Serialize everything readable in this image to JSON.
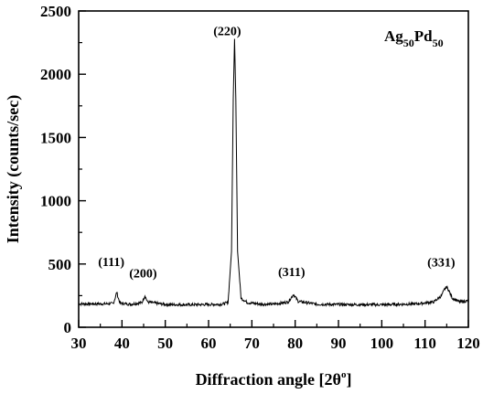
{
  "chart_data": {
    "type": "line",
    "sample_label": "Ag50Pd50",
    "sample_label_parts": {
      "base1": "Ag",
      "sub1": "50",
      "base2": "Pd",
      "sub2": "50"
    },
    "xlabel": "Diffraction angle [2θ°]",
    "xlabel_parts": {
      "main": "Diffraction angle [2θ",
      "sup": "o",
      "end": "]"
    },
    "ylabel": "Intensity (counts/sec)",
    "xlim": [
      30,
      120
    ],
    "ylim": [
      0,
      2500
    ],
    "xticks": [
      "30",
      "40",
      "50",
      "60",
      "70",
      "80",
      "90",
      "100",
      "110",
      "120"
    ],
    "yticks": [
      "0",
      "500",
      "1000",
      "1500",
      "2000",
      "2500"
    ],
    "grid": false,
    "baseline": 180,
    "peaks": [
      {
        "label": "(111)",
        "x": 38.8,
        "y": 280
      },
      {
        "label": "(200)",
        "x": 45.3,
        "y": 250
      },
      {
        "label": "(220)",
        "x": 66.0,
        "y": 2280
      },
      {
        "label": "(311)",
        "x": 79.6,
        "y": 260
      },
      {
        "label": "(331)",
        "x": 115.0,
        "y": 320
      }
    ],
    "series": [
      {
        "x": [
          30,
          36,
          38,
          38.5,
          38.8,
          39.1,
          39.6,
          42,
          44.6,
          45.3,
          45.9,
          50,
          55,
          60,
          63,
          64.5,
          65.3,
          65.7,
          66.0,
          66.3,
          66.7,
          67.5,
          69,
          72,
          75,
          78.4,
          79.6,
          80.7,
          85,
          90,
          100,
          108,
          112,
          113.8,
          114.5,
          115.0,
          115.5,
          116.3,
          118,
          120
        ],
        "y": [
          185,
          185,
          188,
          240,
          280,
          235,
          190,
          182,
          195,
          250,
          200,
          180,
          178,
          180,
          182,
          195,
          600,
          1800,
          2280,
          1800,
          600,
          230,
          195,
          183,
          182,
          200,
          260,
          205,
          182,
          180,
          178,
          185,
          200,
          250,
          300,
          320,
          290,
          230,
          200,
          210
        ]
      }
    ]
  }
}
